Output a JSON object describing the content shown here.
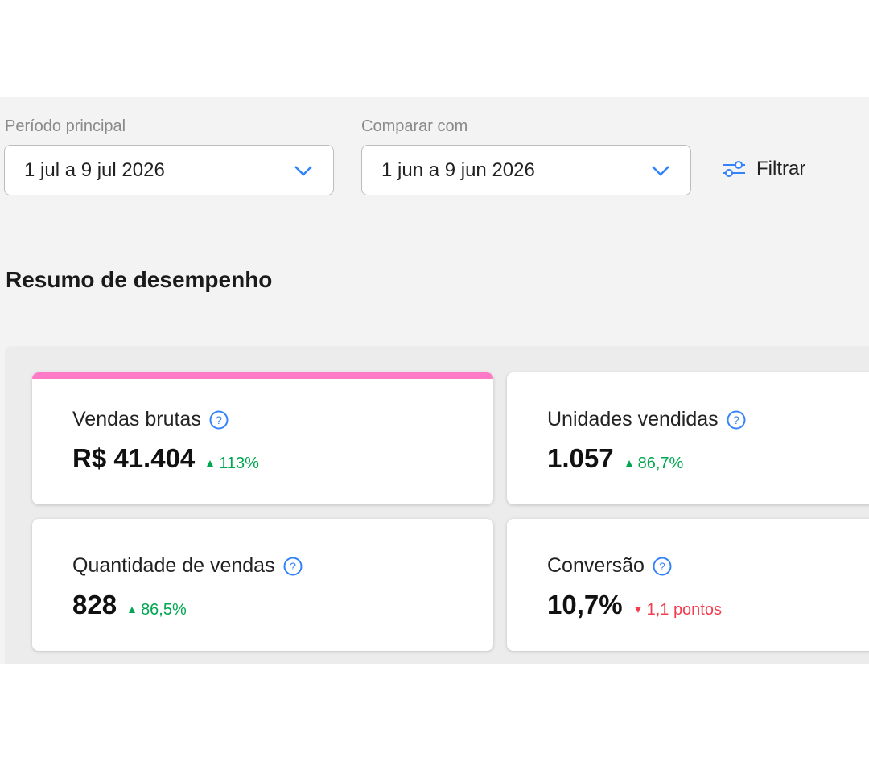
{
  "filters": {
    "main_label": "Período principal",
    "main_value": "1 jul a 9 jul 2026",
    "compare_label": "Comparar com",
    "compare_value": "1 jun a 9 jun 2026",
    "filter_button": "Filtrar"
  },
  "section_title": "Resumo de desempenho",
  "metrics": [
    {
      "label": "Vendas brutas",
      "value": "R$ 41.404",
      "change": "113%"
    },
    {
      "label": "Unidades vendidas",
      "value": "1.057",
      "change": "86,7%"
    },
    {
      "label": "Quantidade de vendas",
      "value": "828",
      "change": "86,5%"
    },
    {
      "label": "Conversão",
      "value": "10,7%",
      "change": "1,1 pontos"
    }
  ]
}
